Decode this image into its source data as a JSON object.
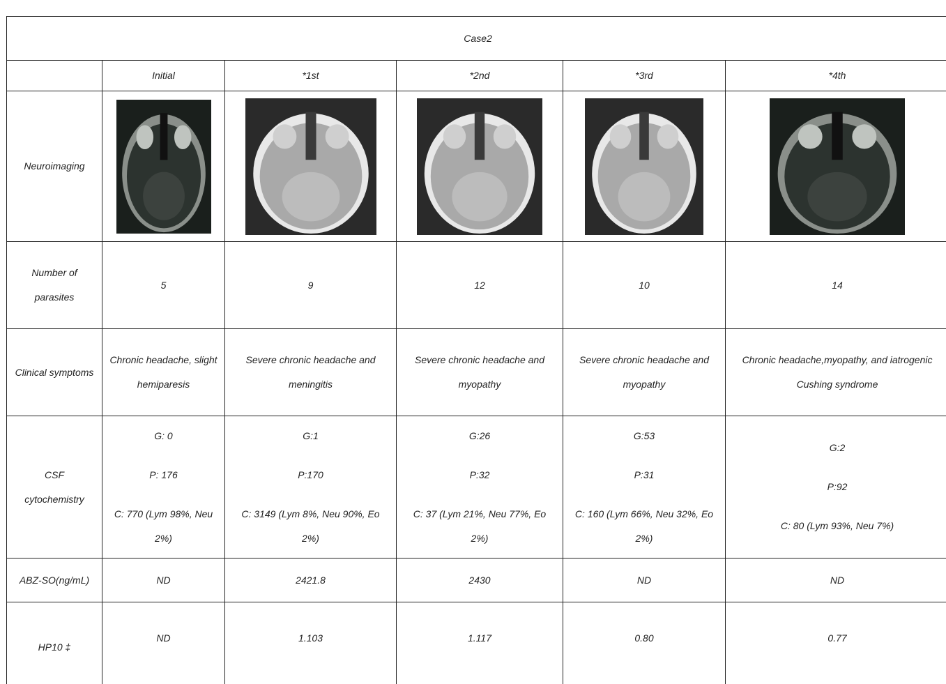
{
  "table": {
    "title": "Case2",
    "columns": [
      "Initial",
      "*1st",
      "*2nd",
      "*3rd",
      "*4th"
    ],
    "imaging_label": "Neuroimaging",
    "rows": [
      {
        "label": "Number of parasites",
        "cells": [
          [
            "5"
          ],
          [
            "9"
          ],
          [
            "12"
          ],
          [
            "10"
          ],
          [
            "14"
          ]
        ]
      },
      {
        "label": "Clinical symptoms",
        "cells": [
          [
            "Chronic headache, slight hemiparesis"
          ],
          [
            "Severe chronic headache and meningitis"
          ],
          [
            "Severe chronic headache and myopathy"
          ],
          [
            "Severe chronic headache and myopathy"
          ],
          [
            "Chronic headache,myopathy, and iatrogenic Cushing syndrome"
          ]
        ]
      },
      {
        "label": "CSF cytochemistry",
        "cells": [
          [
            "G: 0",
            "P: 176",
            "C: 770 (Lym 98%, Neu 2%)"
          ],
          [
            "G:1",
            "P:170",
            "C: 3149 (Lym 8%, Neu 90%, Eo 2%)"
          ],
          [
            "G:26",
            "P:32",
            "C: 37 (Lym 21%, Neu 77%, Eo 2%)"
          ],
          [
            "G:53",
            "P:31",
            "C: 160 (Lym 66%, Neu 32%, Eo 2%)"
          ],
          [
            "G:2",
            "P:92",
            "C: 80 (Lym 93%, Neu 7%)"
          ]
        ]
      },
      {
        "label": "ABZ-SO(ng/mL)",
        "cells": [
          [
            "ND"
          ],
          [
            "2421.8"
          ],
          [
            "2430"
          ],
          [
            "ND"
          ],
          [
            "ND"
          ]
        ]
      },
      {
        "label": "HP10 ‡",
        "cells": [
          [
            "ND"
          ],
          [
            "1.103"
          ],
          [
            "1.117"
          ],
          [
            "0.80"
          ],
          [
            "0.77"
          ]
        ]
      }
    ]
  }
}
